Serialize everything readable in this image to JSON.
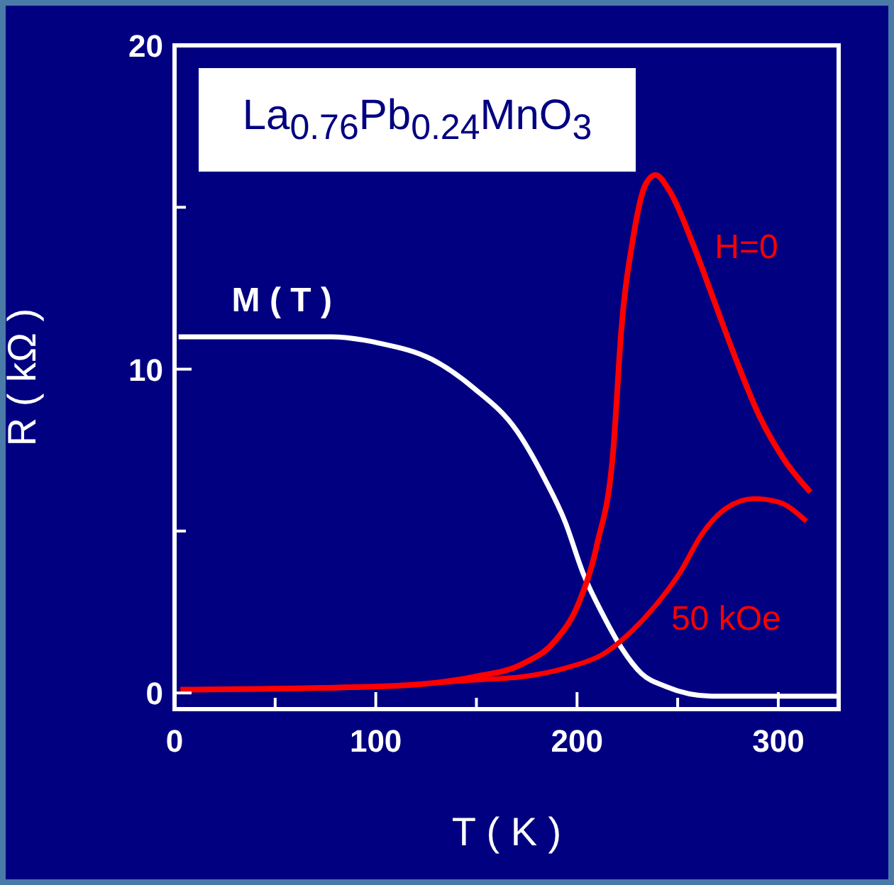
{
  "chart_data": {
    "type": "line",
    "title": "La$_{0.76}$Pb$_{0.24}$MnO$_{3}$",
    "xlabel": "T ( K )",
    "ylabel": "R ( kΩ )",
    "xlim": [
      0,
      330
    ],
    "ylim": [
      -0.5,
      20
    ],
    "xticks": [
      0,
      {
        "value": 50,
        "label": null
      },
      100,
      {
        "value": 150,
        "label": null
      },
      200,
      {
        "value": 250,
        "label": null
      },
      300
    ],
    "yticks": [
      0,
      {
        "value": 5,
        "label": null
      },
      10,
      {
        "value": 15,
        "label": null
      },
      20
    ],
    "series": [
      {
        "name": "M ( T )",
        "color": "#ffffff",
        "x": [
          2,
          78,
          102,
          128,
          149,
          170,
          184,
          194,
          203,
          213,
          222,
          232,
          244,
          267,
          330
        ],
        "values": [
          11.0,
          11.0,
          10.8,
          10.3,
          9.4,
          8.1,
          6.6,
          5.3,
          3.7,
          2.4,
          1.4,
          0.6,
          0.2,
          -0.1,
          -0.1
        ]
      },
      {
        "name": "H=0",
        "color": "#ff0000",
        "x": [
          3,
          102,
          149,
          173,
          189,
          201,
          210,
          218,
          222,
          228,
          234,
          239,
          246,
          258,
          267,
          279,
          291,
          303,
          316
        ],
        "values": [
          0.1,
          0.2,
          0.5,
          0.9,
          1.6,
          2.8,
          4.6,
          7.5,
          11.2,
          14.1,
          15.7,
          16.0,
          15.5,
          13.8,
          12.3,
          10.3,
          8.5,
          7.2,
          6.2
        ]
      },
      {
        "name": "50 kOe",
        "color": "#ff0000",
        "x": [
          3,
          102,
          149,
          173,
          196,
          213,
          227,
          239,
          251,
          262,
          274,
          288,
          300,
          314
        ],
        "values": [
          0.1,
          0.2,
          0.4,
          0.5,
          0.8,
          1.2,
          1.9,
          2.7,
          3.7,
          4.9,
          5.7,
          6.0,
          5.9,
          5.3
        ]
      }
    ]
  }
}
